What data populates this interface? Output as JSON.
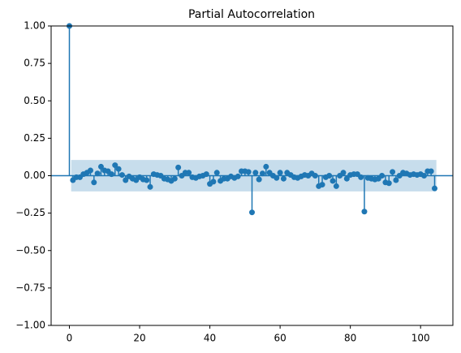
{
  "chart_data": {
    "type": "stem",
    "title": "Partial Autocorrelation",
    "color": "#1f77b4",
    "x": [
      0,
      1,
      2,
      3,
      4,
      5,
      6,
      7,
      8,
      9,
      10,
      11,
      12,
      13,
      14,
      15,
      16,
      17,
      18,
      19,
      20,
      21,
      22,
      23,
      24,
      25,
      26,
      27,
      28,
      29,
      30,
      31,
      32,
      33,
      34,
      35,
      36,
      37,
      38,
      39,
      40,
      41,
      42,
      43,
      44,
      45,
      46,
      47,
      48,
      49,
      50,
      51,
      52,
      53,
      54,
      55,
      56,
      57,
      58,
      59,
      60,
      61,
      62,
      63,
      64,
      65,
      66,
      67,
      68,
      69,
      70,
      71,
      72,
      73,
      74,
      75,
      76,
      77,
      78,
      79,
      80,
      81,
      82,
      83,
      84,
      85,
      86,
      87,
      88,
      89,
      90,
      91,
      92,
      93,
      94,
      95,
      96,
      97,
      98,
      99,
      100,
      101,
      102,
      103,
      104
    ],
    "values": [
      1,
      -0.03,
      -0.01,
      -0.01,
      0.01,
      0.02,
      0.035,
      -0.045,
      0.015,
      0.06,
      0.035,
      0.03,
      0.01,
      0.07,
      0.045,
      0.005,
      -0.03,
      -0.005,
      -0.02,
      -0.03,
      -0.01,
      -0.025,
      -0.03,
      -0.075,
      0.01,
      0.005,
      0.0,
      -0.02,
      -0.025,
      -0.035,
      -0.02,
      0.055,
      0.0,
      0.02,
      0.02,
      -0.01,
      -0.015,
      -0.005,
      0.0,
      0.01,
      -0.055,
      -0.04,
      0.02,
      -0.035,
      -0.02,
      -0.02,
      -0.005,
      -0.015,
      -0.005,
      0.03,
      0.03,
      0.025,
      -0.245,
      0.02,
      -0.025,
      0.015,
      0.06,
      0.02,
      0.0,
      -0.015,
      0.02,
      -0.02,
      0.02,
      0.005,
      -0.01,
      -0.015,
      -0.005,
      0.005,
      0.0,
      0.015,
      0.0,
      -0.07,
      -0.06,
      -0.01,
      0.0,
      -0.035,
      -0.07,
      0.0,
      0.02,
      -0.02,
      0.005,
      0.01,
      0.01,
      -0.01,
      -0.24,
      -0.015,
      -0.02,
      -0.025,
      -0.02,
      0.0,
      -0.045,
      -0.05,
      0.025,
      -0.03,
      0.0,
      0.02,
      0.015,
      0.005,
      0.01,
      0.005,
      0.01,
      0.0,
      0.03,
      0.03,
      -0.085
    ],
    "band": {
      "lower": -0.105,
      "upper": 0.105
    },
    "band_x": [
      0.5,
      104.5
    ],
    "xlim": [
      -5.2,
      109.2
    ],
    "xticks": [
      0,
      20,
      40,
      60,
      80,
      100
    ],
    "ylim": [
      -1,
      1
    ],
    "yticks": [
      {
        "value": -1,
        "label": "−1.00"
      },
      {
        "value": -0.75,
        "label": "−0.75"
      },
      {
        "value": -0.5,
        "label": "−0.50"
      },
      {
        "value": -0.25,
        "label": "−0.25"
      },
      {
        "value": 0,
        "label": "0.00"
      },
      {
        "value": 0.25,
        "label": "0.25"
      },
      {
        "value": 0.5,
        "label": "0.50"
      },
      {
        "value": 0.75,
        "label": "0.75"
      },
      {
        "value": 1,
        "label": "1.00"
      }
    ]
  }
}
